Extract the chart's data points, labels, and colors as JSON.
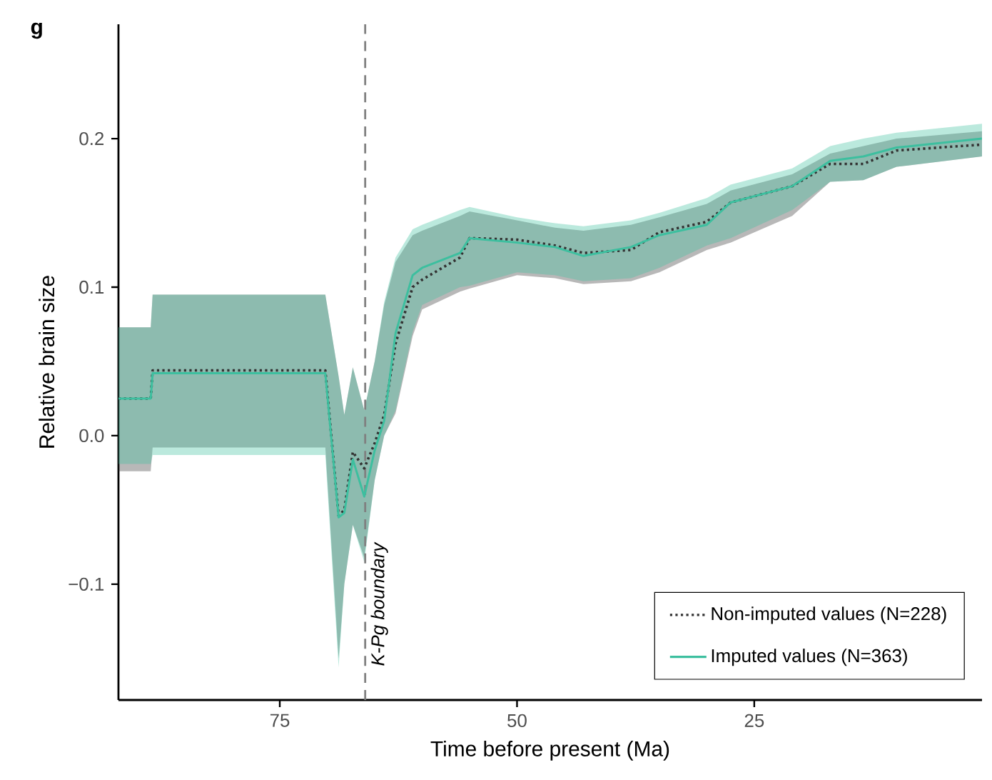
{
  "chart_data": {
    "type": "line",
    "title": "g",
    "xlabel": "Time before present (Ma)",
    "ylabel": "Relative brain size",
    "xlim": [
      92,
      1
    ],
    "xticks": [
      75,
      50,
      25
    ],
    "ylim": [
      -0.178,
      0.277
    ],
    "yticks": [
      {
        "value": -0.1,
        "label": "−0.1"
      },
      {
        "value": 0,
        "label": "0.0"
      },
      0.1,
      0.2
    ],
    "grid": false,
    "legend": "bottom right",
    "marker": "none",
    "ref_lines": [
      {
        "axis": "x",
        "value": 66,
        "label": "K-Pg boundary",
        "color": "#808080",
        "line_style": "dashed"
      }
    ],
    "series": [
      {
        "name": "Non-imputed values (N=228)",
        "color": "#333333",
        "line_style": "dotted",
        "x": [
          92,
          88.6,
          88.4,
          70.2,
          68.8,
          68.2,
          67.3,
          66.1,
          65,
          64,
          62.8,
          61,
          60,
          56,
          55,
          50,
          46,
          43,
          38,
          35,
          30,
          27.5,
          21,
          17,
          13.5,
          10,
          1
        ],
        "values": [
          0.025,
          0.025,
          0.044,
          0.044,
          -0.054,
          -0.05,
          -0.011,
          -0.022,
          -0.005,
          0.014,
          0.062,
          0.1,
          0.105,
          0.12,
          0.133,
          0.132,
          0.128,
          0.123,
          0.125,
          0.137,
          0.144,
          0.157,
          0.168,
          0.183,
          0.183,
          0.192,
          0.196
        ],
        "lower": [
          -0.024,
          -0.024,
          -0.008,
          -0.008,
          -0.15,
          -0.1,
          -0.06,
          -0.082,
          -0.03,
          0.0,
          0.015,
          0.067,
          0.085,
          0.097,
          0.099,
          0.108,
          0.106,
          0.102,
          0.104,
          0.11,
          0.125,
          0.13,
          0.148,
          0.171,
          0.172,
          0.181,
          0.188
        ],
        "upper": [
          0.073,
          0.073,
          0.095,
          0.095,
          0.04,
          0.014,
          0.046,
          0.017,
          0.05,
          0.088,
          0.117,
          0.135,
          0.138,
          0.148,
          0.151,
          0.145,
          0.14,
          0.138,
          0.142,
          0.147,
          0.156,
          0.165,
          0.176,
          0.19,
          0.195,
          0.2,
          0.205
        ]
      },
      {
        "name": "Imputed values (N=363)",
        "color": "#3dbf9f",
        "line_style": "solid",
        "x": [
          92,
          88.6,
          88.4,
          70.2,
          68.8,
          68.2,
          67.3,
          66.1,
          65,
          64,
          62.8,
          61,
          60,
          56,
          55,
          50,
          46,
          43,
          38,
          35,
          30,
          27.5,
          21,
          17,
          13.5,
          10,
          1
        ],
        "values": [
          0.025,
          0.025,
          0.042,
          0.042,
          -0.055,
          -0.052,
          -0.016,
          -0.041,
          -0.01,
          0.01,
          0.069,
          0.108,
          0.113,
          0.123,
          0.133,
          0.13,
          0.127,
          0.121,
          0.127,
          0.135,
          0.142,
          0.157,
          0.168,
          0.185,
          0.188,
          0.194,
          0.2
        ],
        "lower": [
          -0.019,
          -0.019,
          -0.013,
          -0.013,
          -0.156,
          -0.1,
          -0.06,
          -0.085,
          -0.03,
          0.0,
          0.017,
          0.07,
          0.088,
          0.1,
          0.101,
          0.11,
          0.108,
          0.104,
          0.106,
          0.113,
          0.128,
          0.133,
          0.152,
          0.171,
          0.172,
          0.181,
          0.188
        ],
        "upper": [
          0.073,
          0.073,
          0.095,
          0.095,
          0.04,
          0.014,
          0.046,
          0.017,
          0.05,
          0.09,
          0.12,
          0.139,
          0.142,
          0.152,
          0.154,
          0.147,
          0.143,
          0.141,
          0.145,
          0.15,
          0.16,
          0.169,
          0.18,
          0.195,
          0.2,
          0.204,
          0.21
        ]
      }
    ]
  }
}
